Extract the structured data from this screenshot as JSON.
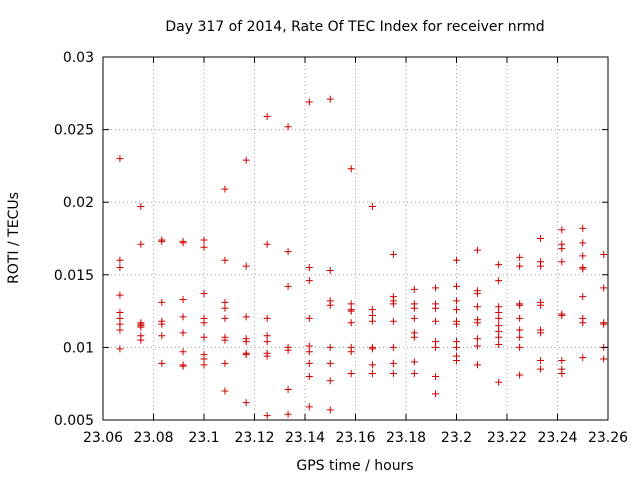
{
  "chart_data": {
    "type": "scatter",
    "title": "Day 317 of 2014, Rate Of TEC Index for receiver nrmd",
    "xlabel": "GPS time / hours",
    "ylabel": "ROTI / TECUs",
    "xlim": [
      23.06,
      23.26
    ],
    "ylim": [
      0.005,
      0.03
    ],
    "grid": true,
    "x_ticks": [
      23.06,
      23.08,
      23.1,
      23.12,
      23.14,
      23.16,
      23.18,
      23.2,
      23.22,
      23.24,
      23.26
    ],
    "x_tick_labels": [
      "23.06",
      "23.08",
      "23.1",
      "23.12",
      "23.14",
      "23.16",
      "23.18",
      "23.2",
      "23.22",
      "23.24",
      "23.26"
    ],
    "y_ticks": [
      0.005,
      0.01,
      0.015,
      0.02,
      0.025,
      0.03
    ],
    "y_tick_labels": [
      "0.005",
      "0.01",
      "0.015",
      "0.02",
      "0.025",
      "0.03"
    ],
    "marker": "+",
    "marker_color": "#cc0000",
    "series": [
      {
        "x": 23.0667,
        "y": [
          0.023,
          0.016,
          0.0155,
          0.0136,
          0.0124,
          0.012,
          0.0116,
          0.0112,
          0.0099
        ]
      },
      {
        "x": 23.075,
        "y": [
          0.0197,
          0.0171,
          0.0117,
          0.0116,
          0.0115,
          0.0114,
          0.0108,
          0.0105
        ]
      },
      {
        "x": 23.0833,
        "y": [
          0.0174,
          0.0173,
          0.0131,
          0.0118,
          0.0116,
          0.0108,
          0.0089
        ]
      },
      {
        "x": 23.0917,
        "y": [
          0.0173,
          0.0172,
          0.0133,
          0.0121,
          0.011,
          0.0097,
          0.0088,
          0.0087
        ]
      },
      {
        "x": 23.1,
        "y": [
          0.0174,
          0.0169,
          0.0137,
          0.012,
          0.0117,
          0.0107,
          0.0095,
          0.0092,
          0.0088
        ]
      },
      {
        "x": 23.1083,
        "y": [
          0.0209,
          0.016,
          0.0131,
          0.0127,
          0.012,
          0.0107,
          0.0105,
          0.0089,
          0.007
        ]
      },
      {
        "x": 23.1167,
        "y": [
          0.0229,
          0.0156,
          0.0121,
          0.0106,
          0.0104,
          0.0096,
          0.0095,
          0.0062
        ]
      },
      {
        "x": 23.125,
        "y": [
          0.0259,
          0.0171,
          0.012,
          0.0108,
          0.0104,
          0.0096,
          0.0094,
          0.0053
        ]
      },
      {
        "x": 23.1333,
        "y": [
          0.0252,
          0.0166,
          0.0142,
          0.01,
          0.0098,
          0.0071,
          0.0054
        ]
      },
      {
        "x": 23.1417,
        "y": [
          0.0269,
          0.0155,
          0.0146,
          0.012,
          0.0101,
          0.0097,
          0.0089,
          0.008,
          0.0059
        ]
      },
      {
        "x": 23.15,
        "y": [
          0.0271,
          0.0153,
          0.0132,
          0.0129,
          0.01,
          0.0089,
          0.0077,
          0.0057
        ]
      },
      {
        "x": 23.1583,
        "y": [
          0.0223,
          0.013,
          0.0126,
          0.0125,
          0.0117,
          0.01,
          0.0097,
          0.0082
        ]
      },
      {
        "x": 23.1667,
        "y": [
          0.0197,
          0.0126,
          0.0122,
          0.0118,
          0.01,
          0.0099,
          0.0088,
          0.0082
        ]
      },
      {
        "x": 23.175,
        "y": [
          0.0164,
          0.0135,
          0.0132,
          0.013,
          0.0118,
          0.01,
          0.0089,
          0.0082
        ]
      },
      {
        "x": 23.1833,
        "y": [
          0.014,
          0.013,
          0.0127,
          0.012,
          0.011,
          0.0107,
          0.009,
          0.0082
        ]
      },
      {
        "x": 23.1917,
        "y": [
          0.0141,
          0.013,
          0.0127,
          0.0118,
          0.0104,
          0.01,
          0.008,
          0.0068
        ]
      },
      {
        "x": 23.2,
        "y": [
          0.016,
          0.0142,
          0.0132,
          0.0126,
          0.0118,
          0.0116,
          0.0104,
          0.01,
          0.0094,
          0.0091
        ]
      },
      {
        "x": 23.2083,
        "y": [
          0.0167,
          0.0139,
          0.0137,
          0.0128,
          0.0119,
          0.0117,
          0.0106,
          0.0101,
          0.0088
        ]
      },
      {
        "x": 23.2167,
        "y": [
          0.0157,
          0.0146,
          0.0128,
          0.0124,
          0.012,
          0.0115,
          0.0111,
          0.0107,
          0.0102,
          0.0076
        ]
      },
      {
        "x": 23.225,
        "y": [
          0.0162,
          0.0156,
          0.013,
          0.0129,
          0.012,
          0.0112,
          0.0107,
          0.01,
          0.0081
        ]
      },
      {
        "x": 23.2333,
        "y": [
          0.0175,
          0.0159,
          0.0156,
          0.0131,
          0.0129,
          0.0112,
          0.011,
          0.0091,
          0.0085
        ]
      },
      {
        "x": 23.2417,
        "y": [
          0.0181,
          0.0171,
          0.0168,
          0.0159,
          0.0123,
          0.0122,
          0.0091,
          0.0085,
          0.0082
        ]
      },
      {
        "x": 23.25,
        "y": [
          0.0182,
          0.0172,
          0.0163,
          0.0155,
          0.0154,
          0.0135,
          0.012,
          0.0117,
          0.0093
        ]
      },
      {
        "x": 23.2583,
        "y": [
          0.0164,
          0.0141,
          0.0117,
          0.0116,
          0.01,
          0.0092
        ]
      }
    ]
  }
}
